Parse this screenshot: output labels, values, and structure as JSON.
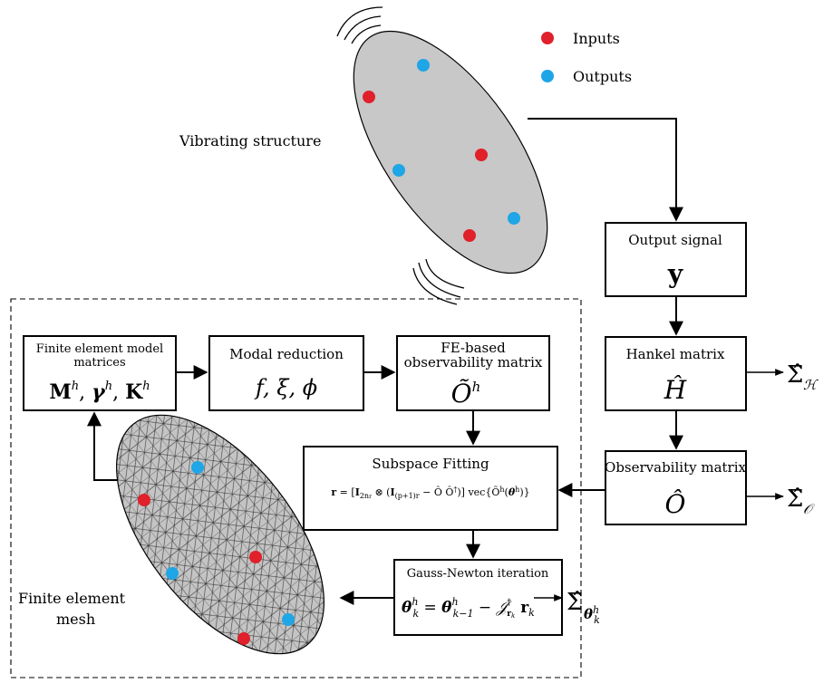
{
  "legend": {
    "inputs_label": "Inputs",
    "outputs_label": "Outputs"
  },
  "colors": {
    "input": "#e0202a",
    "output": "#1ea6e6",
    "structure_fill": "#c8c8c8"
  },
  "labels": {
    "vibrating_structure": "Vibrating structure",
    "fe_mesh_line1": "Finite element",
    "fe_mesh_line2": "mesh"
  },
  "boxes": {
    "output_signal": {
      "title": "Output signal",
      "symbol": "y"
    },
    "hankel": {
      "title": "Hankel matrix",
      "symbol": "Ĥ"
    },
    "observability": {
      "title": "Observability matrix",
      "symbol": "Ô"
    },
    "fe_matrices": {
      "title_line1": "Finite element model",
      "title_line2": "matrices"
    },
    "modal_reduction": {
      "title": "Modal reduction",
      "symbol": "f, ξ, ϕ"
    },
    "fe_observability": {
      "title_line1": "FE-based",
      "title_line2": "observability matrix"
    },
    "subspace_fitting": {
      "title": "Subspace Fitting"
    },
    "gauss_newton": {
      "title": "Gauss-Newton iteration"
    }
  },
  "covariances": {
    "hankel": "Σ̂",
    "observability": "Σ̂",
    "theta": "Σ̂"
  }
}
